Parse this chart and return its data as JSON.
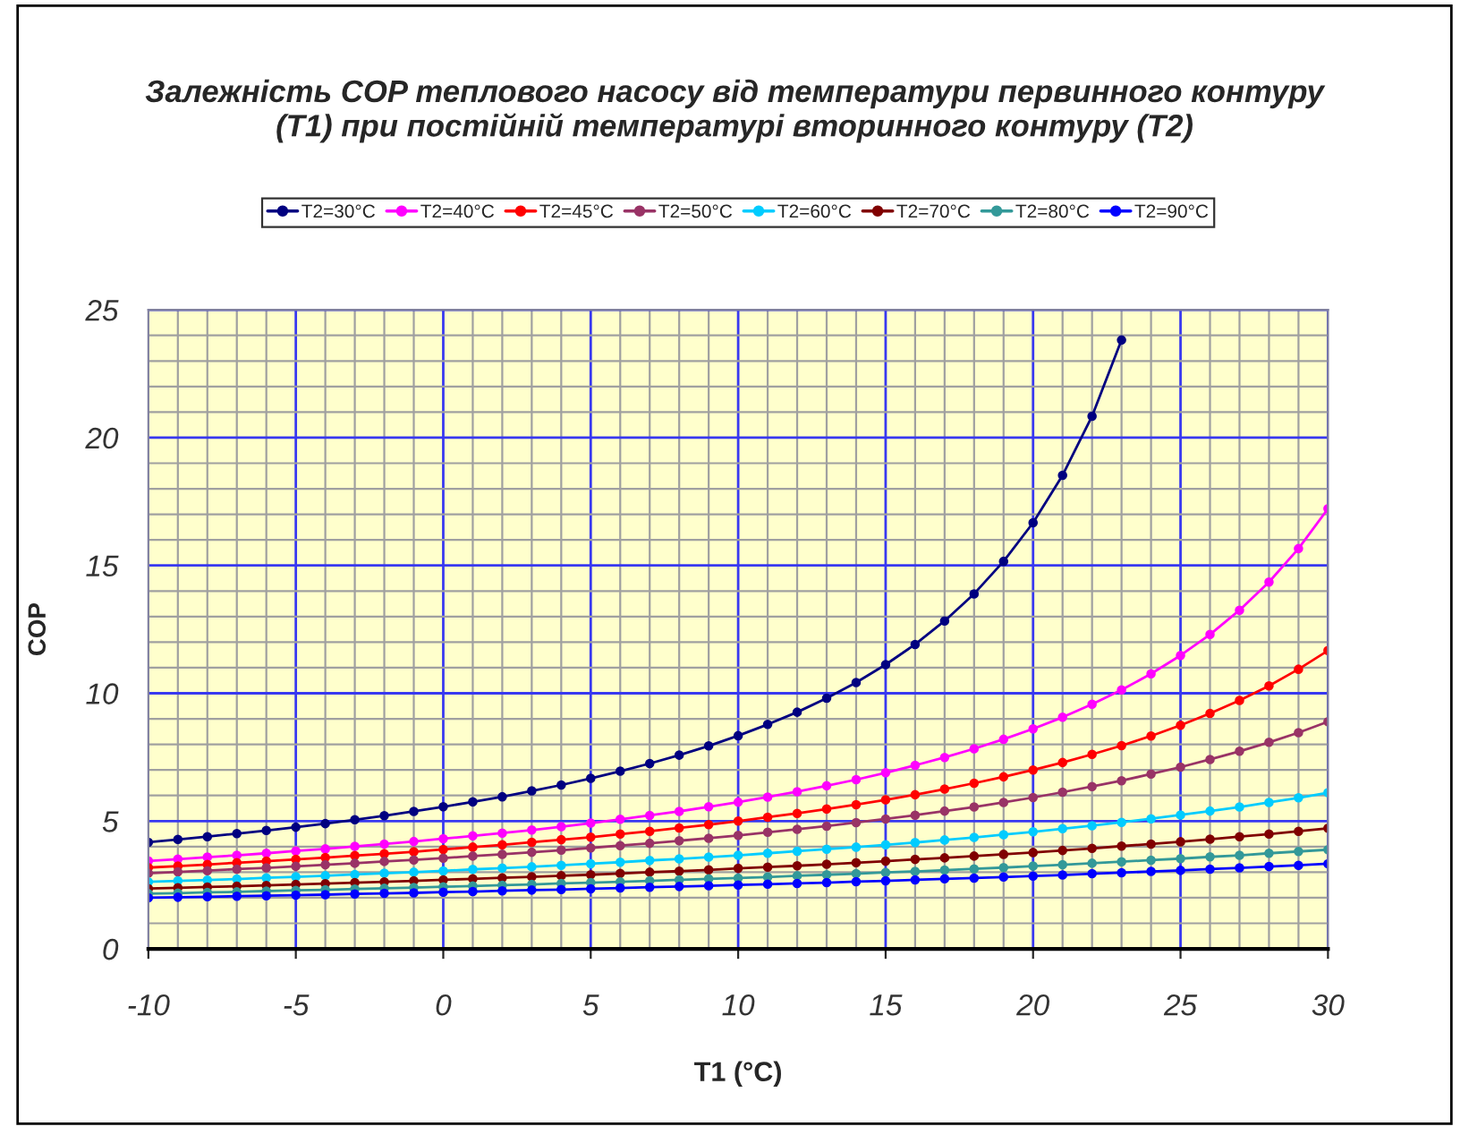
{
  "chart_data": {
    "type": "line",
    "title": "Залежність COP теплового насосу від температури первинного контуру (T1) при постійній температурі вторинного контуру (T2)",
    "xlabel": "T1 (°C)",
    "ylabel": "COP",
    "x": [
      -10,
      -9,
      -8,
      -7,
      -6,
      -5,
      -4,
      -3,
      -2,
      -1,
      0,
      1,
      2,
      3,
      4,
      5,
      6,
      7,
      8,
      9,
      10,
      11,
      12,
      13,
      14,
      15,
      16,
      17,
      18,
      19,
      20,
      21,
      22,
      23,
      24,
      25,
      26,
      27,
      28,
      29,
      30
    ],
    "series": [
      {
        "name": "T2=30°C",
        "color": "#000080",
        "values": [
          4.17,
          4.28,
          4.39,
          4.51,
          4.63,
          4.76,
          4.9,
          5.05,
          5.21,
          5.38,
          5.56,
          5.75,
          5.95,
          6.18,
          6.41,
          6.67,
          6.95,
          7.25,
          7.58,
          7.94,
          8.34,
          8.78,
          9.26,
          9.81,
          10.42,
          11.12,
          11.91,
          12.83,
          13.89,
          15.16,
          16.67,
          18.53,
          20.84,
          23.82,
          null,
          null,
          null,
          null,
          null,
          null,
          null
        ]
      },
      {
        "name": "T2=40°C",
        "color": "#ff00ff",
        "values": [
          3.44,
          3.51,
          3.59,
          3.66,
          3.74,
          3.83,
          3.91,
          4.01,
          4.1,
          4.2,
          4.31,
          4.42,
          4.53,
          4.65,
          4.78,
          4.92,
          5.07,
          5.22,
          5.38,
          5.56,
          5.74,
          5.94,
          6.15,
          6.38,
          6.62,
          6.89,
          7.18,
          7.49,
          7.83,
          8.2,
          8.61,
          9.06,
          9.57,
          10.13,
          10.76,
          11.48,
          12.3,
          13.25,
          14.35,
          15.66,
          17.22
        ]
      },
      {
        "name": "T2=45°C",
        "color": "#ff0000",
        "values": [
          3.18,
          3.24,
          3.3,
          3.37,
          3.43,
          3.5,
          3.57,
          3.65,
          3.72,
          3.8,
          3.89,
          3.98,
          4.07,
          4.17,
          4.27,
          4.37,
          4.49,
          4.6,
          4.73,
          4.86,
          5.0,
          5.15,
          5.3,
          5.47,
          5.64,
          5.83,
          6.03,
          6.25,
          6.48,
          6.73,
          7.0,
          7.29,
          7.61,
          7.95,
          8.33,
          8.75,
          9.21,
          9.72,
          10.29,
          10.94,
          11.67
        ]
      },
      {
        "name": "T2=50°C",
        "color": "#993366",
        "values": [
          2.96,
          3.01,
          3.06,
          3.12,
          3.17,
          3.23,
          3.29,
          3.35,
          3.42,
          3.48,
          3.55,
          3.63,
          3.7,
          3.78,
          3.86,
          3.95,
          4.04,
          4.13,
          4.23,
          4.33,
          4.44,
          4.56,
          4.68,
          4.8,
          4.94,
          5.08,
          5.23,
          5.39,
          5.55,
          5.73,
          5.92,
          6.13,
          6.35,
          6.58,
          6.84,
          7.11,
          7.41,
          7.73,
          8.08,
          8.46,
          8.89
        ]
      },
      {
        "name": "T2=60°C",
        "color": "#00ccff",
        "values": [
          2.62,
          2.66,
          2.69,
          2.73,
          2.78,
          2.82,
          2.86,
          2.91,
          2.96,
          3.0,
          3.05,
          3.11,
          3.16,
          3.21,
          3.27,
          3.33,
          3.39,
          3.46,
          3.52,
          3.59,
          3.66,
          3.74,
          3.82,
          3.9,
          3.98,
          4.07,
          4.16,
          4.26,
          4.36,
          4.47,
          4.58,
          4.7,
          4.82,
          4.95,
          5.09,
          5.24,
          5.39,
          5.55,
          5.73,
          5.91,
          6.11
        ]
      },
      {
        "name": "T2=70°C",
        "color": "#800000",
        "values": [
          2.36,
          2.39,
          2.42,
          2.45,
          2.48,
          2.52,
          2.55,
          2.59,
          2.62,
          2.66,
          2.7,
          2.74,
          2.78,
          2.82,
          2.86,
          2.9,
          2.95,
          3.0,
          3.04,
          3.09,
          3.15,
          3.2,
          3.25,
          3.31,
          3.37,
          3.43,
          3.5,
          3.56,
          3.63,
          3.7,
          3.77,
          3.85,
          3.93,
          4.02,
          4.1,
          4.19,
          4.29,
          4.39,
          4.49,
          4.6,
          4.72
        ]
      },
      {
        "name": "T2=80°C",
        "color": "#339999",
        "values": [
          2.16,
          2.18,
          2.21,
          2.23,
          2.26,
          2.29,
          2.31,
          2.34,
          2.37,
          2.4,
          2.43,
          2.46,
          2.49,
          2.52,
          2.56,
          2.59,
          2.62,
          2.66,
          2.7,
          2.74,
          2.77,
          2.81,
          2.86,
          2.9,
          2.94,
          2.99,
          3.03,
          3.08,
          3.13,
          3.18,
          3.24,
          3.29,
          3.35,
          3.41,
          3.47,
          3.53,
          3.6,
          3.66,
          3.74,
          3.81,
          3.88
        ]
      },
      {
        "name": "T2=90°C",
        "color": "#0000ff",
        "values": [
          2.0,
          2.02,
          2.04,
          2.06,
          2.08,
          2.1,
          2.12,
          2.15,
          2.17,
          2.19,
          2.22,
          2.24,
          2.27,
          2.3,
          2.32,
          2.35,
          2.38,
          2.41,
          2.44,
          2.47,
          2.5,
          2.53,
          2.56,
          2.59,
          2.63,
          2.66,
          2.7,
          2.74,
          2.77,
          2.81,
          2.85,
          2.89,
          2.94,
          2.98,
          3.03,
          3.07,
          3.12,
          3.17,
          3.22,
          3.27,
          3.33
        ]
      }
    ],
    "xlim": [
      -10,
      30
    ],
    "xticks": [
      -10,
      -5,
      0,
      5,
      10,
      15,
      20,
      25,
      30
    ],
    "ylim": [
      0,
      25
    ],
    "yticks": [
      0,
      5,
      10,
      15,
      20,
      25
    ],
    "grid": true,
    "legend": "top",
    "marker": "circle",
    "line_style": "solid"
  }
}
